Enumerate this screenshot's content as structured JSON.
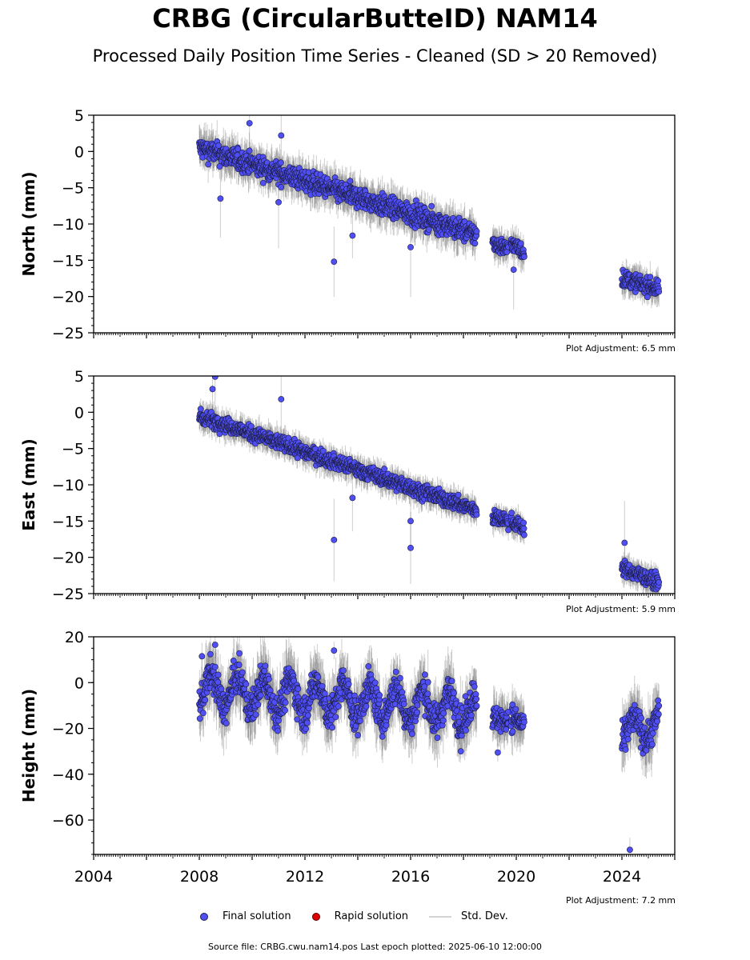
{
  "title": "CRBG (CircularButteID) NAM14",
  "subtitle": "Processed Daily Position Time Series - Cleaned (SD > 20 Removed)",
  "legend": {
    "final": "Final solution",
    "rapid": "Rapid solution",
    "sd": "Std. Dev."
  },
  "footer": "Source file: CRBG.cwu.nam14.pos  Last epoch plotted: 2025-06-10 12:00:00",
  "colors": {
    "final": "#4f4ff5",
    "rapid": "#e00000",
    "sd": "#d4d4d4"
  },
  "chart_data": [
    {
      "type": "scatter",
      "ylabel": "North (mm)",
      "note": "Plot Adjustment: 6.5 mm",
      "xlim": [
        2004,
        2026
      ],
      "ylim": [
        -25,
        5
      ],
      "yticks": [
        5,
        0,
        -5,
        -10,
        -15,
        -20,
        -25
      ],
      "ytick_labels": [
        "5",
        "0",
        "−5",
        "−10",
        "−15",
        "−20",
        "−25"
      ],
      "segments": [
        {
          "x0": 2008.0,
          "x1": 2018.5,
          "y0": 0.5,
          "y1": -11.5,
          "noise": 1.3
        },
        {
          "x0": 2019.1,
          "x1": 2019.7,
          "y0": -12.5,
          "y1": -13.5,
          "noise": 1.0
        },
        {
          "x0": 2019.8,
          "x1": 2020.3,
          "y0": -12.5,
          "y1": -14.0,
          "noise": 1.0
        },
        {
          "x0": 2024.0,
          "x1": 2025.4,
          "y0": -17.5,
          "y1": -19.0,
          "noise": 1.0
        }
      ],
      "outliers": [
        [
          2011.1,
          2.2
        ],
        [
          2009.9,
          3.9
        ],
        [
          2008.8,
          -6.5
        ],
        [
          2013.1,
          -15.2
        ],
        [
          2013.8,
          -11.6
        ],
        [
          2016.0,
          -13.2
        ],
        [
          2011.0,
          -7.0
        ],
        [
          2019.9,
          -16.3
        ]
      ]
    },
    {
      "type": "scatter",
      "ylabel": "East (mm)",
      "note": "Plot Adjustment: 5.9 mm",
      "xlim": [
        2004,
        2026
      ],
      "ylim": [
        -25,
        5
      ],
      "yticks": [
        5,
        0,
        -5,
        -10,
        -15,
        -20,
        -25
      ],
      "ytick_labels": [
        "5",
        "0",
        "−5",
        "−10",
        "−15",
        "−20",
        "−25"
      ],
      "segments": [
        {
          "x0": 2008.0,
          "x1": 2018.5,
          "y0": -0.5,
          "y1": -13.5,
          "noise": 0.9
        },
        {
          "x0": 2019.1,
          "x1": 2019.7,
          "y0": -14.5,
          "y1": -15.0,
          "noise": 0.9
        },
        {
          "x0": 2019.8,
          "x1": 2020.3,
          "y0": -15.0,
          "y1": -16.0,
          "noise": 0.9
        },
        {
          "x0": 2024.0,
          "x1": 2025.4,
          "y0": -21.5,
          "y1": -23.5,
          "noise": 0.9
        }
      ],
      "outliers": [
        [
          2008.6,
          4.9
        ],
        [
          2008.5,
          3.2
        ],
        [
          2011.1,
          1.8
        ],
        [
          2013.1,
          -17.6
        ],
        [
          2016.0,
          -18.7
        ],
        [
          2024.1,
          -18.0
        ],
        [
          2013.8,
          -11.8
        ],
        [
          2016.0,
          -15.0
        ]
      ]
    },
    {
      "type": "scatter",
      "ylabel": "Height (mm)",
      "note": "Plot Adjustment: 7.2 mm",
      "xlim": [
        2004,
        2026
      ],
      "ylim": [
        -75,
        20
      ],
      "yticks": [
        20,
        0,
        -20,
        -40,
        -60
      ],
      "ytick_labels": [
        "20",
        "0",
        "−20",
        "−40",
        "−60"
      ],
      "xticks": [
        2004,
        2008,
        2012,
        2016,
        2020,
        2024
      ],
      "xtick_labels": [
        "2004",
        "2008",
        "2012",
        "2016",
        "2020",
        "2024"
      ],
      "segments": [
        {
          "x0": 2008.0,
          "x1": 2018.5,
          "y0": -3.0,
          "y1": -12.0,
          "noise": 6.5,
          "seasonal": 7.0
        },
        {
          "x0": 2019.1,
          "x1": 2019.7,
          "y0": -16.0,
          "y1": -16.0,
          "noise": 5.0
        },
        {
          "x0": 2019.8,
          "x1": 2020.3,
          "y0": -15.0,
          "y1": -18.0,
          "noise": 5.0
        },
        {
          "x0": 2024.0,
          "x1": 2025.4,
          "y0": -22.0,
          "y1": -18.0,
          "noise": 6.0,
          "seasonal": 5.0
        }
      ],
      "outliers": [
        [
          2008.6,
          16.5
        ],
        [
          2013.1,
          14.0
        ],
        [
          2024.3,
          -73.0
        ],
        [
          2019.3,
          -30.5
        ],
        [
          2008.1,
          11.5
        ],
        [
          2017.9,
          -30.0
        ]
      ]
    }
  ]
}
